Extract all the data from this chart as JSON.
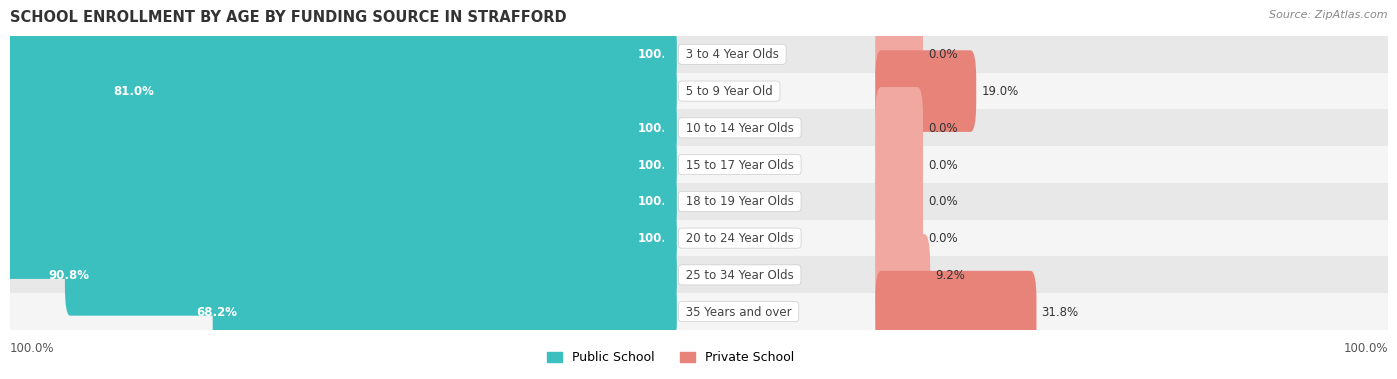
{
  "title": "SCHOOL ENROLLMENT BY AGE BY FUNDING SOURCE IN STRAFFORD",
  "source": "Source: ZipAtlas.com",
  "categories": [
    "3 to 4 Year Olds",
    "5 to 9 Year Old",
    "10 to 14 Year Olds",
    "15 to 17 Year Olds",
    "18 to 19 Year Olds",
    "20 to 24 Year Olds",
    "25 to 34 Year Olds",
    "35 Years and over"
  ],
  "public_values": [
    100.0,
    81.0,
    100.0,
    100.0,
    100.0,
    100.0,
    90.8,
    68.2
  ],
  "private_values": [
    0.0,
    19.0,
    0.0,
    0.0,
    0.0,
    0.0,
    9.2,
    31.8
  ],
  "public_color": "#3bbfbf",
  "private_color": "#e8837a",
  "private_color_light": "#f0a8a0",
  "bar_height": 0.62,
  "title_fontsize": 10.5,
  "label_fontsize": 8.5,
  "axis_label_fontsize": 8.5,
  "legend_fontsize": 9,
  "source_fontsize": 8,
  "row_bg_colors": [
    "#e8e8e8",
    "#f5f5f5"
  ],
  "bottom_left_label": "100.0%",
  "bottom_right_label": "100.0%"
}
